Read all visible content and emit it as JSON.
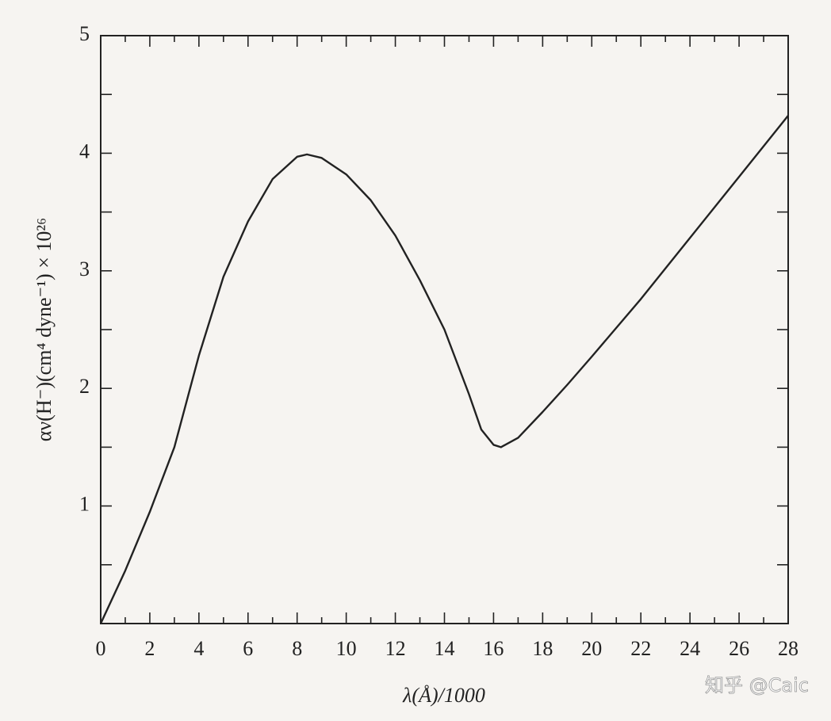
{
  "chart_data": {
    "type": "line",
    "xlabel": "λ(Å)/1000",
    "ylabel": "αν(H⁻)(cm⁴ dyne⁻¹) × 10²⁶",
    "watermark": "知乎 @Caic",
    "x": [
      0,
      1,
      2,
      3,
      4,
      5,
      6,
      7,
      8,
      8.4,
      9,
      10,
      11,
      12,
      13,
      14,
      15,
      15.5,
      16,
      16.3,
      17,
      18,
      19,
      20,
      22,
      24,
      26,
      28
    ],
    "series": [
      {
        "color": "#222222",
        "values": [
          0,
          0.45,
          0.95,
          1.5,
          2.28,
          2.95,
          3.42,
          3.78,
          3.97,
          3.99,
          3.96,
          3.82,
          3.6,
          3.3,
          2.92,
          2.5,
          1.95,
          1.65,
          1.52,
          1.5,
          1.58,
          1.8,
          2.03,
          2.27,
          2.76,
          3.28,
          3.8,
          4.32
        ]
      }
    ],
    "xlim": [
      0,
      28
    ],
    "ylim": [
      0,
      5
    ],
    "xticks": [
      0,
      2,
      4,
      6,
      8,
      10,
      12,
      14,
      16,
      18,
      20,
      22,
      24,
      26,
      28
    ],
    "xminorticks": [
      1,
      3,
      5,
      7,
      9,
      11,
      13,
      15,
      17,
      19,
      21,
      23,
      25,
      27
    ],
    "yticks": [
      1,
      2,
      3,
      4,
      5
    ],
    "yminorticks": [
      0.5,
      1.5,
      2.5,
      3.5,
      4.5
    ],
    "grid": false
  }
}
